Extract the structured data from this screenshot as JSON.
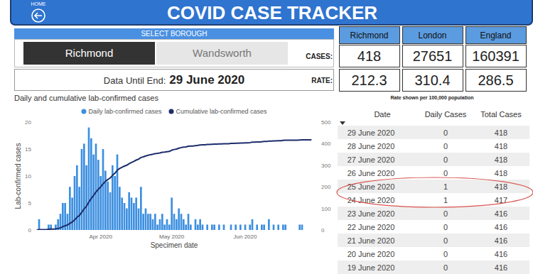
{
  "header": {
    "home_label": "HOME",
    "title": "COVID CASE TRACKER"
  },
  "selector": {
    "title": "SELECT BOROUGH",
    "options": [
      "Richmond",
      "Wandsworth"
    ],
    "selected": "Richmond"
  },
  "data_until": {
    "label": "Data Until End:",
    "date": "29 June 2020"
  },
  "stats": {
    "columns": [
      "Richmond",
      "London",
      "England"
    ],
    "rows": [
      {
        "label": "CASES:",
        "values": [
          418,
          27651,
          160391
        ]
      },
      {
        "label": "RATE:",
        "values": [
          212.3,
          310.4,
          286.5
        ]
      }
    ],
    "note": "Rate shown per 100,000 population"
  },
  "chart_data": {
    "type": "bar",
    "title": "Daily and cumulative lab-confirmed cases",
    "x_label": "Specimen date",
    "y_label": "Lab-confirmed cases",
    "categories": [
      null,
      null,
      null,
      null,
      null,
      null,
      null,
      null,
      null,
      null,
      null,
      null,
      null,
      null,
      null,
      null,
      null,
      null,
      null,
      null,
      null,
      null,
      null,
      null,
      null,
      null,
      null,
      "Apr 2020",
      null,
      null,
      null,
      null,
      null,
      null,
      null,
      null,
      null,
      null,
      null,
      null,
      null,
      null,
      null,
      null,
      null,
      null,
      null,
      null,
      null,
      null,
      null,
      null,
      null,
      null,
      null,
      null,
      null,
      "May 2020",
      null,
      null,
      null,
      null,
      null,
      null,
      null,
      null,
      null,
      null,
      null,
      null,
      null,
      null,
      null,
      null,
      null,
      null,
      null,
      null,
      null,
      null,
      null,
      null,
      null,
      null,
      null,
      null,
      null,
      null,
      "Jun 2020",
      null,
      null,
      null,
      null,
      null,
      null,
      null,
      null,
      null,
      null,
      null,
      null,
      null,
      null,
      null,
      null,
      null,
      null,
      null,
      null,
      null,
      null,
      null,
      null,
      null,
      null,
      null,
      null
    ],
    "series": [
      {
        "name": "Daily lab-confirmed cases",
        "type": "bar",
        "color": "#3d8fe0",
        "values": [
          0,
          2,
          0,
          0,
          0,
          1,
          1,
          0,
          1,
          2,
          3,
          5,
          5,
          3,
          8,
          6,
          10,
          12,
          8,
          15,
          16,
          12,
          19,
          17,
          14,
          16,
          13,
          10,
          15,
          11,
          9,
          7,
          12,
          10,
          14,
          8,
          6,
          5,
          4,
          7,
          6,
          5,
          6,
          4,
          8,
          3,
          4,
          3,
          3,
          2,
          3,
          1,
          2,
          3,
          1,
          2,
          1,
          6,
          3,
          2,
          4,
          3,
          2,
          1,
          3,
          1,
          0,
          2,
          1,
          2,
          1,
          0,
          1,
          0,
          1,
          1,
          0,
          1,
          0,
          1,
          0,
          0,
          1,
          0,
          1,
          0,
          1,
          0,
          1,
          0,
          1,
          2,
          0,
          1,
          0,
          1,
          1,
          0,
          2,
          0,
          1,
          0,
          1,
          0,
          1,
          1,
          0,
          0,
          0,
          0,
          0,
          1,
          1,
          0,
          0,
          0,
          0
        ]
      },
      {
        "name": "Cumulative lab-confirmed cases",
        "type": "line",
        "axis": "y2",
        "color": "#1c2c6b",
        "values": [
          0,
          2,
          2,
          2,
          2,
          3,
          4,
          4,
          5,
          7,
          10,
          15,
          20,
          23,
          31,
          37,
          47,
          59,
          67,
          82,
          98,
          110,
          129,
          146,
          160,
          176,
          189,
          199,
          214,
          225,
          234,
          241,
          253,
          263,
          277,
          285,
          291,
          296,
          300,
          307,
          313,
          318,
          324,
          328,
          336,
          339,
          343,
          346,
          349,
          351,
          354,
          355,
          357,
          360,
          361,
          363,
          364,
          370,
          373,
          375,
          379,
          382,
          384,
          385,
          388,
          389,
          389,
          391,
          392,
          394,
          395,
          395,
          396,
          396,
          397,
          398,
          398,
          399,
          399,
          400,
          400,
          400,
          401,
          401,
          402,
          402,
          403,
          403,
          404,
          404,
          405,
          407,
          407,
          408,
          408,
          409,
          410,
          410,
          412,
          412,
          413,
          413,
          414,
          414,
          415,
          416,
          416,
          416,
          416,
          416,
          416,
          417,
          418,
          418,
          418,
          418,
          418
        ]
      }
    ],
    "ylim": [
      0,
      20
    ],
    "yticks": [
      0,
      5,
      10,
      15,
      20
    ],
    "y2lim": [
      0,
      500
    ],
    "y2ticks": [
      0,
      100,
      200,
      300,
      400,
      500
    ],
    "grid": false,
    "legend": "top"
  },
  "table": {
    "columns": [
      "Date",
      "Daily Cases",
      "Total Cases"
    ],
    "rows": [
      [
        "29 June 2020",
        0,
        418
      ],
      [
        "28 June 2020",
        0,
        418
      ],
      [
        "27 June 2020",
        0,
        418
      ],
      [
        "26 June 2020",
        0,
        418
      ],
      [
        "25 June 2020",
        1,
        418
      ],
      [
        "24 June 2020",
        1,
        417
      ],
      [
        "23 June 2020",
        0,
        416
      ],
      [
        "22 June 2020",
        0,
        416
      ],
      [
        "21 June 2020",
        0,
        416
      ],
      [
        "20 June 2020",
        0,
        416
      ],
      [
        "19 June 2020",
        0,
        416
      ]
    ]
  }
}
